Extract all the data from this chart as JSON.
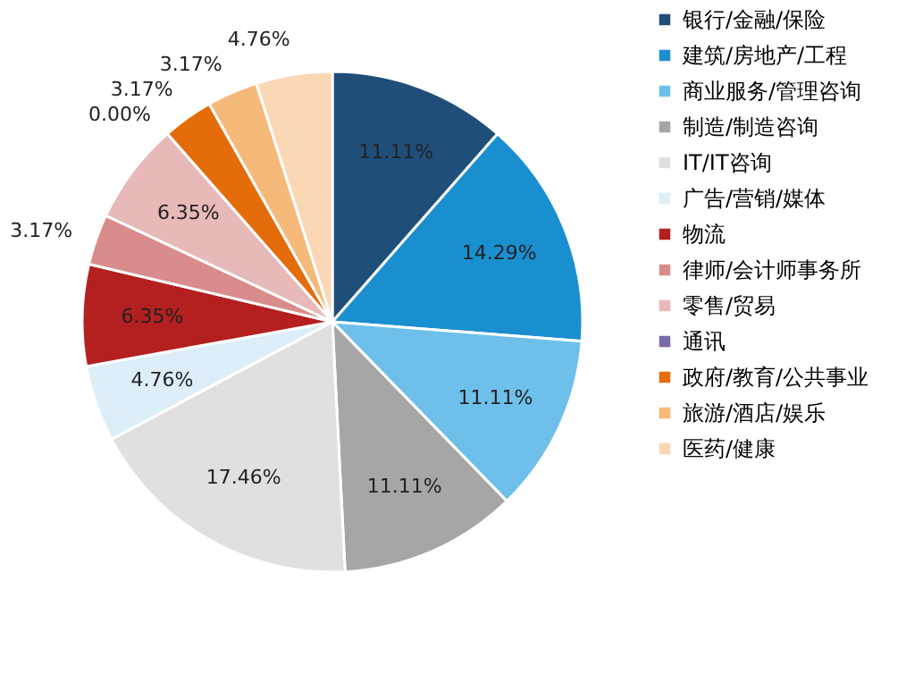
{
  "chart_data": {
    "type": "pie",
    "categories": [
      "银行/金融/保险",
      "建筑/房地产/工程",
      "商业服务/管理咨询",
      "制造/制造咨询",
      "IT/IT咨询",
      "广告/营销/媒体",
      "物流",
      "律师/会计师事务所",
      "零售/贸易",
      "通讯",
      "政府/教育/公共事业",
      "旅游/酒店/娱乐",
      "医药/健康"
    ],
    "values": [
      11.11,
      14.29,
      11.11,
      11.11,
      17.46,
      4.76,
      6.35,
      3.17,
      6.35,
      0.0,
      3.17,
      3.17,
      4.76
    ],
    "value_labels": [
      "11.11%",
      "14.29%",
      "11.11%",
      "11.11%",
      "17.46%",
      "4.76%",
      "6.35%",
      "3.17%",
      "6.35%",
      "0.00%",
      "3.17%",
      "3.17%",
      "4.76%"
    ],
    "colors": [
      "#1f4e79",
      "#1a8fd0",
      "#6ec0ea",
      "#a6a6a6",
      "#e0e0e0",
      "#ddeef8",
      "#b3201f",
      "#d98c8c",
      "#e8b9b9",
      "#7b68a6",
      "#e46c0a",
      "#f5b97a",
      "#fad7b5"
    ],
    "legend": "right"
  }
}
